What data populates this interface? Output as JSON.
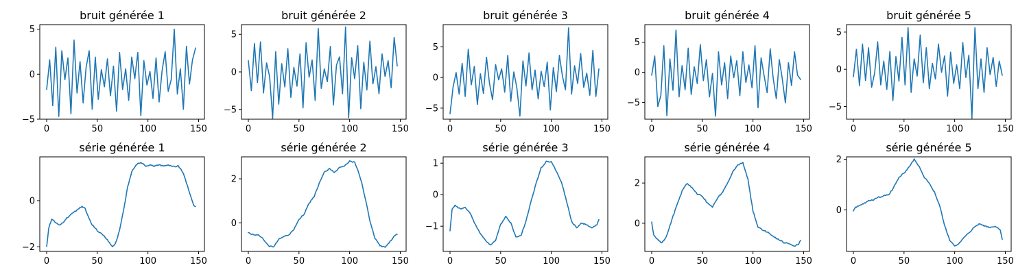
{
  "colors": {
    "line": "#1f77b4",
    "axes": "#000000",
    "background": "#ffffff"
  },
  "chart_data": [
    {
      "type": "line",
      "title": "bruit générée 1",
      "xlim": [
        0,
        149
      ],
      "ylim": [
        -5.0,
        5.5
      ],
      "xticks": [
        0,
        50,
        100,
        150
      ],
      "yticks": [
        -5,
        0,
        5
      ],
      "keypoints": {
        "x": [
          0,
          3,
          6,
          9,
          12,
          15,
          18,
          21,
          24,
          27,
          30,
          33,
          36,
          39,
          42,
          45,
          48,
          51,
          54,
          57,
          60,
          63,
          66,
          69,
          72,
          75,
          78,
          81,
          84,
          87,
          90,
          93,
          96,
          99,
          102,
          105,
          108,
          111,
          114,
          117,
          120,
          123,
          126,
          129,
          132,
          135,
          138,
          141,
          144,
          147
        ],
        "y": [
          -1.7,
          1.6,
          -3.5,
          3.0,
          -4.7,
          2.6,
          -0.6,
          1.8,
          -4.4,
          3.8,
          -2.1,
          1.4,
          -3.2,
          0.8,
          2.6,
          -3.9,
          1.9,
          -2.8,
          0.5,
          -1.4,
          1.7,
          -2.4,
          0.9,
          -4.1,
          2.4,
          -1.7,
          0.6,
          -2.9,
          1.9,
          -0.5,
          2.4,
          -4.6,
          1.5,
          -1.2,
          0.3,
          -2.7,
          1.8,
          -3.1,
          0.4,
          2.5,
          -1.9,
          -0.6,
          5.0,
          -2.2,
          0.6,
          -3.9,
          3.1,
          -1.1,
          1.6,
          2.9
        ]
      }
    },
    {
      "type": "line",
      "title": "bruit générée 2",
      "xlim": [
        0,
        149
      ],
      "ylim": [
        -6.3,
        6.3
      ],
      "xticks": [
        0,
        50,
        100,
        150
      ],
      "yticks": [
        -5,
        0,
        5
      ],
      "keypoints": {
        "x": [
          0,
          3,
          6,
          9,
          12,
          15,
          18,
          21,
          24,
          27,
          30,
          33,
          36,
          39,
          42,
          45,
          48,
          51,
          54,
          57,
          60,
          63,
          66,
          69,
          72,
          75,
          78,
          81,
          84,
          87,
          90,
          93,
          96,
          99,
          102,
          105,
          108,
          111,
          114,
          117,
          120,
          123,
          126,
          129,
          132,
          135,
          138,
          141,
          144,
          147
        ],
        "y": [
          1.5,
          -2.5,
          3.8,
          -1.4,
          4.0,
          -2.8,
          1.2,
          -0.6,
          -6.2,
          2.7,
          -4.3,
          1.1,
          -2.0,
          3.1,
          -3.4,
          0.6,
          -1.9,
          2.4,
          -4.8,
          3.9,
          -0.7,
          1.6,
          -3.8,
          5.8,
          -2.2,
          0.4,
          -1.3,
          3.4,
          -4.4,
          0.9,
          2.0,
          -2.9,
          6.0,
          -6.1,
          1.9,
          -0.9,
          3.5,
          -4.9,
          1.3,
          -2.4,
          4.1,
          -1.6,
          0.7,
          -2.9,
          2.4,
          -0.6,
          1.5,
          -2.1,
          4.6,
          0.8
        ]
      }
    },
    {
      "type": "line",
      "title": "bruit générée 3",
      "xlim": [
        0,
        149
      ],
      "ylim": [
        -6.8,
        8.6
      ],
      "xticks": [
        0,
        50,
        100,
        150
      ],
      "yticks": [
        -5,
        0,
        5
      ],
      "keypoints": {
        "x": [
          0,
          3,
          6,
          9,
          12,
          15,
          18,
          21,
          24,
          27,
          30,
          33,
          36,
          39,
          42,
          45,
          48,
          51,
          54,
          57,
          60,
          63,
          66,
          69,
          72,
          75,
          78,
          81,
          84,
          87,
          90,
          93,
          96,
          99,
          102,
          105,
          108,
          111,
          114,
          117,
          120,
          123,
          126,
          129,
          132,
          135,
          138,
          141,
          144,
          147
        ],
        "y": [
          -5.9,
          -1.6,
          0.8,
          -2.7,
          2.3,
          -3.1,
          4.6,
          -1.2,
          1.8,
          -4.4,
          0.6,
          -2.6,
          3.3,
          -1.0,
          -3.6,
          2.1,
          -0.4,
          1.4,
          -2.4,
          3.6,
          -3.9,
          0.9,
          -1.7,
          -6.3,
          2.7,
          -1.4,
          4.0,
          -2.0,
          1.2,
          -3.5,
          1.0,
          -1.5,
          2.5,
          -5.3,
          1.6,
          -2.3,
          3.6,
          0.2,
          -2.0,
          8.1,
          -2.7,
          1.9,
          -1.0,
          3.9,
          -1.6,
          0.7,
          -2.9,
          4.4,
          -3.1,
          1.4
        ]
      }
    },
    {
      "type": "line",
      "title": "bruit générée 4",
      "xlim": [
        0,
        149
      ],
      "ylim": [
        -7.8,
        7.9
      ],
      "xticks": [
        0,
        50,
        100,
        150
      ],
      "yticks": [
        -5,
        0,
        5
      ],
      "keypoints": {
        "x": [
          0,
          3,
          6,
          9,
          12,
          15,
          18,
          21,
          24,
          27,
          30,
          33,
          36,
          39,
          42,
          45,
          48,
          51,
          54,
          57,
          60,
          63,
          66,
          69,
          72,
          75,
          78,
          81,
          84,
          87,
          90,
          93,
          96,
          99,
          102,
          105,
          108,
          111,
          114,
          117,
          120,
          123,
          126,
          129,
          132,
          135,
          138,
          141,
          144,
          147
        ],
        "y": [
          -0.5,
          2.7,
          -5.7,
          -3.9,
          4.4,
          -7.2,
          2.2,
          -3.0,
          7.0,
          -4.1,
          1.1,
          -2.9,
          4.0,
          -3.7,
          0.9,
          -1.9,
          4.6,
          -1.4,
          2.1,
          -4.1,
          -0.2,
          -7.3,
          3.4,
          -2.1,
          1.6,
          -4.4,
          2.7,
          -0.9,
          1.9,
          -3.9,
          3.4,
          -1.7,
          1.2,
          -2.6,
          4.4,
          -5.9,
          2.4,
          -0.6,
          -3.4,
          3.9,
          -1.1,
          -4.4,
          2.1,
          -1.2,
          -5.1,
          1.6,
          -2.2,
          3.4,
          -0.5,
          -1.2
        ]
      }
    },
    {
      "type": "line",
      "title": "bruit générée 5",
      "xlim": [
        0,
        149
      ],
      "ylim": [
        -6.7,
        6.0
      ],
      "xticks": [
        0,
        50,
        100,
        150
      ],
      "yticks": [
        -5,
        0,
        5
      ],
      "keypoints": {
        "x": [
          0,
          3,
          6,
          9,
          12,
          15,
          18,
          21,
          24,
          27,
          30,
          33,
          36,
          39,
          42,
          45,
          48,
          51,
          54,
          57,
          60,
          63,
          66,
          69,
          72,
          75,
          78,
          81,
          84,
          87,
          90,
          93,
          96,
          99,
          102,
          105,
          108,
          111,
          114,
          117,
          120,
          123,
          126,
          129,
          132,
          135,
          138,
          141,
          144,
          147
        ],
        "y": [
          -1.0,
          2.7,
          -2.2,
          3.4,
          -1.5,
          2.9,
          -2.4,
          -0.5,
          3.7,
          -2.1,
          1.1,
          -2.7,
          2.4,
          -4.2,
          1.7,
          -1.6,
          4.3,
          -2.1,
          5.6,
          -3.1,
          1.4,
          -0.9,
          4.6,
          -1.8,
          2.9,
          -2.6,
          0.8,
          -1.3,
          3.4,
          -0.4,
          1.8,
          -3.6,
          2.3,
          -1.9,
          0.6,
          -2.6,
          3.6,
          -1.1,
          1.9,
          -6.6,
          5.6,
          -2.6,
          1.4,
          -3.1,
          2.9,
          -0.7,
          1.6,
          -2.3,
          1.1,
          -0.8
        ]
      }
    },
    {
      "type": "line",
      "title": "série générée 1",
      "xlim": [
        0,
        149
      ],
      "ylim": [
        -2.2,
        1.9
      ],
      "xticks": [
        0,
        50,
        100,
        150
      ],
      "yticks": [
        -2,
        0
      ],
      "keypoints": {
        "x": [
          0,
          2,
          5,
          8,
          12,
          15,
          20,
          25,
          30,
          35,
          38,
          42,
          45,
          50,
          55,
          60,
          65,
          68,
          72,
          76,
          80,
          84,
          88,
          92,
          95,
          98,
          102,
          106,
          110,
          115,
          120,
          125,
          130,
          135,
          140,
          145,
          147
        ],
        "y": [
          -2.0,
          -1.2,
          -0.8,
          -0.9,
          -1.05,
          -1.0,
          -0.75,
          -0.55,
          -0.4,
          -0.25,
          -0.35,
          -0.8,
          -1.05,
          -1.3,
          -1.45,
          -1.7,
          -2.0,
          -1.85,
          -1.3,
          -0.4,
          0.6,
          1.25,
          1.55,
          1.65,
          1.6,
          1.5,
          1.55,
          1.5,
          1.55,
          1.52,
          1.55,
          1.48,
          1.5,
          1.2,
          0.5,
          -0.2,
          -0.25
        ]
      }
    },
    {
      "type": "line",
      "title": "série générée 2",
      "xlim": [
        0,
        149
      ],
      "ylim": [
        -1.3,
        3.0
      ],
      "xticks": [
        0,
        50,
        100,
        150
      ],
      "yticks": [
        0,
        2
      ],
      "keypoints": {
        "x": [
          0,
          5,
          10,
          15,
          20,
          25,
          30,
          35,
          40,
          45,
          50,
          55,
          60,
          65,
          70,
          75,
          80,
          85,
          90,
          95,
          100,
          105,
          108,
          112,
          116,
          120,
          125,
          130,
          135,
          140,
          145,
          147
        ],
        "y": [
          -0.45,
          -0.55,
          -0.55,
          -0.75,
          -1.05,
          -1.1,
          -0.75,
          -0.6,
          -0.55,
          -0.3,
          0.15,
          0.4,
          0.9,
          1.2,
          1.8,
          2.3,
          2.45,
          2.3,
          2.5,
          2.6,
          2.8,
          2.75,
          2.4,
          1.8,
          1.0,
          0.1,
          -0.7,
          -1.05,
          -1.1,
          -0.85,
          -0.55,
          -0.5
        ]
      }
    },
    {
      "type": "line",
      "title": "série générée 3",
      "xlim": [
        0,
        149
      ],
      "ylim": [
        -1.8,
        1.2
      ],
      "xticks": [
        0,
        50,
        100,
        150
      ],
      "yticks": [
        -1,
        0,
        1
      ],
      "keypoints": {
        "x": [
          0,
          2,
          5,
          10,
          15,
          20,
          25,
          30,
          35,
          40,
          45,
          50,
          55,
          60,
          65,
          70,
          75,
          80,
          85,
          90,
          95,
          100,
          105,
          110,
          115,
          120,
          125,
          130,
          135,
          140,
          145,
          147
        ],
        "y": [
          -1.15,
          -0.45,
          -0.35,
          -0.45,
          -0.4,
          -0.6,
          -0.95,
          -1.25,
          -1.45,
          -1.6,
          -1.45,
          -0.95,
          -0.7,
          -0.9,
          -1.35,
          -1.3,
          -0.85,
          -0.2,
          0.35,
          0.85,
          1.05,
          1.05,
          0.75,
          0.4,
          -0.2,
          -0.85,
          -1.05,
          -0.9,
          -0.95,
          -1.05,
          -0.95,
          -0.8
        ]
      }
    },
    {
      "type": "line",
      "title": "série générée 4",
      "xlim": [
        0,
        149
      ],
      "ylim": [
        -1.4,
        3.3
      ],
      "xticks": [
        0,
        50,
        100,
        150
      ],
      "yticks": [
        0,
        2
      ],
      "keypoints": {
        "x": [
          0,
          2,
          5,
          10,
          15,
          20,
          25,
          30,
          35,
          40,
          45,
          50,
          55,
          60,
          65,
          70,
          75,
          80,
          85,
          90,
          95,
          100,
          105,
          110,
          115,
          120,
          125,
          130,
          135,
          140,
          145,
          147
        ],
        "y": [
          0.05,
          -0.6,
          -0.75,
          -1.0,
          -0.6,
          0.2,
          0.9,
          1.6,
          2.0,
          1.75,
          1.45,
          1.35,
          1.0,
          0.8,
          1.25,
          1.55,
          2.0,
          2.55,
          2.9,
          3.0,
          2.2,
          0.6,
          -0.2,
          -0.35,
          -0.45,
          -0.65,
          -0.8,
          -0.95,
          -1.0,
          -1.15,
          -1.05,
          -0.85
        ]
      }
    },
    {
      "type": "line",
      "title": "série générée 5",
      "xlim": [
        0,
        149
      ],
      "ylim": [
        -1.65,
        2.1
      ],
      "xticks": [
        0,
        50,
        100,
        150
      ],
      "yticks": [
        0,
        2
      ],
      "keypoints": {
        "x": [
          0,
          2,
          5,
          10,
          15,
          20,
          25,
          30,
          35,
          40,
          45,
          50,
          55,
          60,
          65,
          70,
          75,
          80,
          85,
          90,
          95,
          100,
          105,
          110,
          115,
          120,
          125,
          130,
          135,
          140,
          145,
          147
        ],
        "y": [
          -0.05,
          0.1,
          0.15,
          0.25,
          0.35,
          0.4,
          0.5,
          0.55,
          0.6,
          0.9,
          1.3,
          1.45,
          1.7,
          2.0,
          1.7,
          1.3,
          1.05,
          0.7,
          0.2,
          -0.6,
          -1.2,
          -1.45,
          -1.3,
          -1.05,
          -0.9,
          -0.65,
          -0.55,
          -0.65,
          -0.7,
          -0.65,
          -0.8,
          -1.15
        ]
      }
    }
  ]
}
